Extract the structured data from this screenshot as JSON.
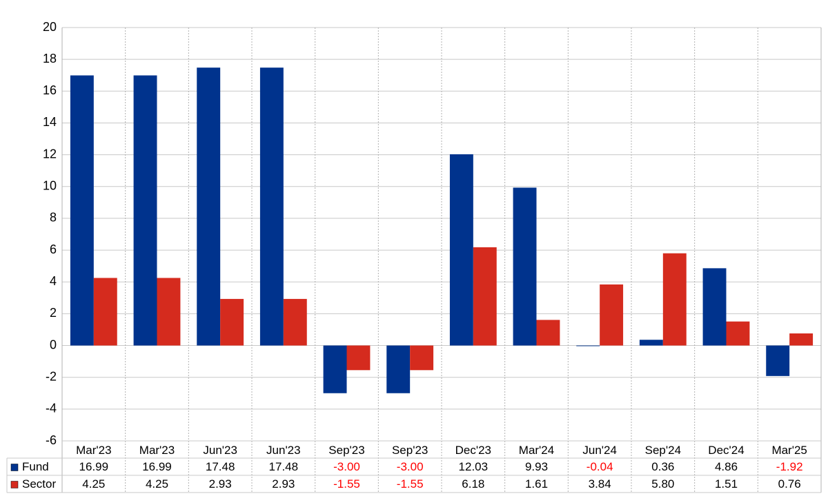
{
  "chart_data": {
    "type": "bar",
    "categories": [
      "Mar'23",
      "Mar'23",
      "Jun'23",
      "Jun'23",
      "Sep'23",
      "Sep'23",
      "Dec'23",
      "Mar'24",
      "Jun'24",
      "Sep'24",
      "Dec'24",
      "Mar'25"
    ],
    "series": [
      {
        "name": "Fund",
        "color": "#00338d",
        "values": [
          16.99,
          16.99,
          17.48,
          17.48,
          -3.0,
          -3.0,
          12.03,
          9.93,
          -0.04,
          0.36,
          4.86,
          -1.92
        ],
        "value_labels": [
          "16.99",
          "16.99",
          "17.48",
          "17.48",
          "-3.00",
          "-3.00",
          "12.03",
          "9.93",
          "-0.04",
          "0.36",
          "4.86",
          "-1.92"
        ]
      },
      {
        "name": "Sector",
        "color": "#d52b1e",
        "values": [
          4.25,
          4.25,
          2.93,
          2.93,
          -1.55,
          -1.55,
          6.18,
          1.61,
          3.84,
          5.8,
          1.51,
          0.76
        ],
        "value_labels": [
          "4.25",
          "4.25",
          "2.93",
          "2.93",
          "-1.55",
          "-1.55",
          "6.18",
          "1.61",
          "3.84",
          "5.80",
          "1.51",
          "0.76"
        ]
      }
    ],
    "ylim": [
      -6,
      20
    ],
    "yticks": [
      -6,
      -4,
      -2,
      0,
      2,
      4,
      6,
      8,
      10,
      12,
      14,
      16,
      18,
      20
    ],
    "grid": true,
    "negative_label_color": "#ff0000"
  }
}
